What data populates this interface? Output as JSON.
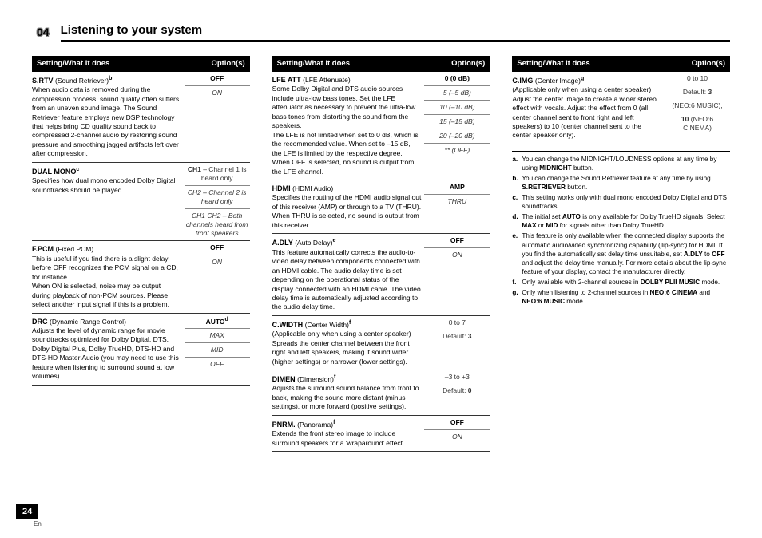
{
  "chapter_num": "04",
  "chapter_title": "Listening to your system",
  "hdr_setting": "Setting/What it does",
  "hdr_options": "Option(s)",
  "col1": {
    "srtv": {
      "name": "S.RTV ",
      "sub": "(Sound Retriever)",
      "sup": "b",
      "desc": "When audio data is removed during the compression process, sound quality often suffers from an uneven sound image. The Sound Retriever feature employs new DSP technology that helps bring CD quality sound back to compressed 2-channel audio by restoring sound pressure and smoothing jagged artifacts left over after compression.",
      "opts": [
        "OFF",
        "ON"
      ]
    },
    "dualmono": {
      "name": "DUAL MONO",
      "sup": "c",
      "desc": "Specifies how dual mono encoded Dolby Digital soundtracks should be played.",
      "opts": [
        {
          "b": "CH1",
          "t": " – Channel 1 is heard only"
        },
        {
          "b": "",
          "t": "CH2 – Channel 2 is heard only",
          "i": true
        },
        {
          "b": "",
          "t": "CH1 CH2 – Both channels heard from front speakers",
          "i": true
        }
      ]
    },
    "fpcm": {
      "name": "F.PCM ",
      "sub": "(Fixed PCM)",
      "desc": "This is useful if you find there is a slight delay before OFF recognizes the PCM signal on a CD, for instance.\nWhen ON is selected, noise may be output during playback of non-PCM sources. Please select another input signal if this is a problem.",
      "opts": [
        "OFF",
        "ON"
      ]
    },
    "drc": {
      "name": "DRC ",
      "sub": "(Dynamic Range Control)",
      "desc": "Adjusts the level of dynamic range for movie soundtracks optimized for Dolby Digital, DTS, Dolby Digital Plus, Dolby TrueHD, DTS-HD and DTS-HD Master Audio (you may need to use this feature when listening to surround sound at low volumes).",
      "opts": [
        "AUTO",
        "MAX",
        "MID",
        "OFF"
      ],
      "sup": "d"
    }
  },
  "col2": {
    "lfe": {
      "name": "LFE ATT ",
      "sub": "(LFE Attenuate)",
      "desc": "Some Dolby Digital and DTS audio sources include ultra-low bass tones. Set the LFE attenuator as necessary to prevent the ultra-low bass tones from distorting the sound from the speakers.\nThe LFE is not limited when set to 0 dB, which is the recommended value. When set to –15 dB, the LFE is limited by the respective degree. When OFF is selected, no sound is output from the LFE channel.",
      "opts": [
        "0 (0 dB)",
        "5 (–5 dB)",
        "10 (–10 dB)",
        "15 (–15 dB)",
        "20 (–20 dB)",
        "** (OFF)"
      ]
    },
    "hdmi": {
      "name": "HDMI ",
      "sub": "(HDMI Audio)",
      "desc": "Specifies the routing of the HDMI audio signal out of this receiver (AMP) or through to a TV (THRU). When THRU is selected, no sound is output from this receiver.",
      "opts": [
        "AMP",
        "THRU"
      ]
    },
    "adly": {
      "name": "A.DLY ",
      "sub": "(Auto Delay)",
      "sup": "e",
      "desc": "This feature automatically corrects the audio-to-video delay between components connected with an HDMI cable. The audio delay time is set depending on the operational status of the display connected with an HDMI cable. The video delay time is automatically adjusted according to the audio delay time.",
      "opts": [
        "OFF",
        "ON"
      ]
    },
    "cwidth": {
      "name": "C.WIDTH ",
      "sub": "(Center Width)",
      "sup": "f",
      "desc": "(Applicable only when using a center speaker) Spreads the center channel between the front right and left speakers, making it sound wider (higher settings) or narrower (lower settings).",
      "opts": [
        "0 to 7",
        "Default: 3"
      ]
    },
    "dimen": {
      "name": "DIMEN ",
      "sub": "(Dimension)",
      "sup": "f",
      "desc": "Adjusts the surround sound balance from front to back, making the sound more distant (minus settings), or more forward (positive settings).",
      "opts": [
        "–3 to +3",
        "Default: 0"
      ]
    },
    "pnrm": {
      "name": "PNRM. ",
      "sub": "(Panorama)",
      "sup": "f",
      "desc": "Extends the front stereo image to include surround speakers for a 'wraparound' effect.",
      "opts": [
        "OFF",
        "ON"
      ]
    }
  },
  "col3": {
    "cimg": {
      "name": "C.IMG ",
      "sub": "(Center Image)",
      "sup": "g",
      "desc": "(Applicable only when using a center speaker) Adjust the center image to create a wider stereo effect with vocals. Adjust the effect from 0 (all center channel sent to front right and left speakers) to 10 (center channel sent to the center speaker only).",
      "opts": [
        "0 to 10",
        "Default: 3",
        "(NEO:6 MUSIC),",
        "10 (NEO:6 CINEMA)"
      ]
    }
  },
  "notes": {
    "a": "You can change the MIDNIGHT/LOUDNESS options at any time by using MIDNIGHT button.",
    "b": "You can change the Sound Retriever feature at any time by using S.RETRIEVER button.",
    "c": "This setting works only with dual mono encoded Dolby Digital and DTS soundtracks.",
    "d": "The initial set AUTO is only available for Dolby TrueHD signals. Select MAX or MID for signals other than Dolby TrueHD.",
    "e": "This feature is only available when the connected display supports the automatic audio/video synchronizing capability ('lip-sync') for HDMI. If you find the automatically set delay time unsuitable, set A.DLY to OFF and adjust the delay time manually. For more details about the lip-sync feature of your display, contact the manufacturer directly.",
    "f": "Only available with 2-channel sources in DOLBY PLII MUSIC mode.",
    "g": "Only when listening to 2-channel sources in NEO:6 CINEMA and NEO:6 MUSIC mode."
  },
  "page_num": "24",
  "page_lang": "En"
}
